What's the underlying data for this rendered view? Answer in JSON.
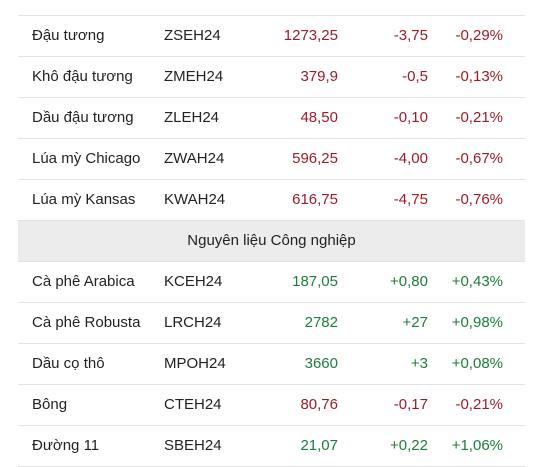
{
  "rows_top": [
    {
      "name": "Đậu tương",
      "code": "ZSEH24",
      "price": "1273,25",
      "change": "-3,75",
      "pct": "-0,29%",
      "trend": "down"
    },
    {
      "name": "Khô đậu tương",
      "code": "ZMEH24",
      "price": "379,9",
      "change": "-0,5",
      "pct": "-0,13%",
      "trend": "down"
    },
    {
      "name": "Dầu đậu tương",
      "code": "ZLEH24",
      "price": "48,50",
      "change": "-0,10",
      "pct": "-0,21%",
      "trend": "down"
    },
    {
      "name": "Lúa mỳ Chicago",
      "code": "ZWAH24",
      "price": "596,25",
      "change": "-4,00",
      "pct": "-0,67%",
      "trend": "down"
    },
    {
      "name": "Lúa mỳ Kansas",
      "code": "KWAH24",
      "price": "616,75",
      "change": "-4,75",
      "pct": "-0,76%",
      "trend": "down"
    }
  ],
  "section_title": "Nguyên liệu Công nghiệp",
  "rows_bottom": [
    {
      "name": "Cà phê Arabica",
      "code": "KCEH24",
      "price": "187,05",
      "change": "+0,80",
      "pct": "+0,43%",
      "trend": "up"
    },
    {
      "name": "Cà phê Robusta",
      "code": "LRCH24",
      "price": "2782",
      "change": "+27",
      "pct": "+0,98%",
      "trend": "up"
    },
    {
      "name": "Dầu cọ thô",
      "code": "MPOH24",
      "price": "3660",
      "change": "+3",
      "pct": "+0,08%",
      "trend": "up"
    },
    {
      "name": "Bông",
      "code": "CTEH24",
      "price": "80,76",
      "change": "-0,17",
      "pct": "-0,21%",
      "trend": "down"
    },
    {
      "name": "Đường 11",
      "code": "SBEH24",
      "price": "21,07",
      "change": "+0,22",
      "pct": "+1,06%",
      "trend": "up"
    }
  ],
  "colors": {
    "down": "#9b1c28",
    "up": "#1d7d3a",
    "section_bg": "#ececec"
  }
}
